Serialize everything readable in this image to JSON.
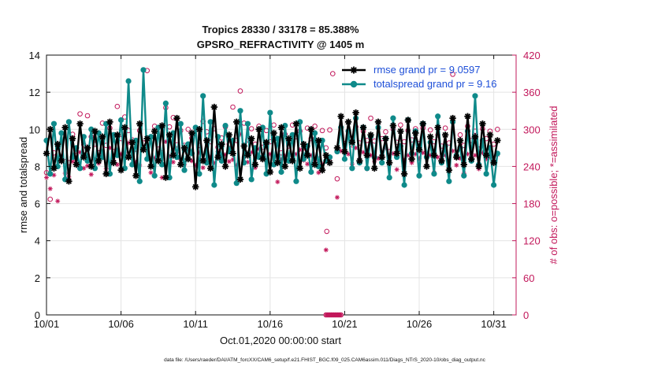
{
  "chart_data": {
    "type": "line",
    "title_line1": "Tropics 28330 / 33178 = 85.388%",
    "title_line2": "GPSRO_REFRACTIVITY @ 1405 m",
    "xlabel": "Oct.01,2020 00:00:00 start",
    "ylabel_left": "rmse and totalspread",
    "ylabel_right": "# of obs: o=possible; *=assimilated",
    "xlim": [
      0,
      31.5
    ],
    "ylim_left": [
      0,
      14
    ],
    "ylim_right": [
      0,
      420
    ],
    "x_ticks": [
      {
        "value": 0,
        "label": "10/01"
      },
      {
        "value": 5,
        "label": "10/06"
      },
      {
        "value": 10,
        "label": "10/11"
      },
      {
        "value": 15,
        "label": "10/16"
      },
      {
        "value": 20,
        "label": "10/21"
      },
      {
        "value": 25,
        "label": "10/26"
      },
      {
        "value": 30,
        "label": "10/31"
      }
    ],
    "y_ticks_left": [
      "0",
      "2",
      "4",
      "6",
      "8",
      "10",
      "12",
      "14"
    ],
    "y_ticks_right": [
      "0",
      "60",
      "120",
      "180",
      "240",
      "300",
      "360",
      "420"
    ],
    "legend_position": "top-right",
    "x_step_days": 0.25,
    "series": [
      {
        "name": "rmse grand pr = 9.0597",
        "color": "#000000",
        "marker": "star",
        "axis": "left",
        "segments": [
          {
            "x_start": 0.0,
            "values": [
              8.7,
              10.0,
              7.9,
              9.2,
              8.3,
              10.1,
              7.2,
              9.5,
              8.1,
              10.3,
              8.5,
              9.0,
              8.0,
              9.9,
              8.3,
              9.6,
              7.6,
              10.4,
              8.2,
              9.7,
              7.8,
              10.1,
              8.5,
              9.3,
              7.5,
              10.3,
              8.9,
              9.5,
              8.0,
              9.9,
              8.3,
              10.2,
              7.4,
              9.7,
              8.6,
              10.6,
              8.1,
              9.0,
              8.4,
              9.8,
              6.9,
              10.0,
              8.3,
              9.4,
              7.9,
              11.2,
              8.5,
              9.2,
              8.0,
              9.7,
              8.7,
              10.4,
              7.3,
              9.1,
              8.6,
              9.5,
              8.1,
              10.0,
              8.4,
              9.3,
              7.7,
              9.8,
              8.2,
              10.1,
              8.0,
              9.5,
              8.3,
              10.3,
              7.9,
              9.2,
              8.6,
              10.0,
              8.1,
              9.4,
              7.8,
              8.6,
              8.2
            ]
          },
          {
            "x_start": 19.5,
            "values": [
              9.0,
              10.7,
              8.8,
              10.4,
              9.3,
              10.9,
              8.3,
              10.1,
              8.6,
              9.7,
              7.9,
              10.4,
              8.5,
              9.5,
              8.2,
              10.2,
              8.7,
              9.9,
              7.6,
              10.5,
              8.4,
              9.8,
              8.9,
              10.3,
              8.0,
              9.6,
              8.6,
              10.1,
              8.3,
              9.7,
              7.8,
              10.6,
              8.5,
              9.4,
              8.1,
              10.7,
              8.4,
              9.6,
              8.0,
              10.3,
              8.6,
              9.7,
              8.2,
              9.4
            ]
          }
        ]
      },
      {
        "name": "totalspread grand pr = 9.16",
        "color": "#0f8a8a",
        "marker": "circle",
        "axis": "left",
        "segments": [
          {
            "x_start": 0.0,
            "values": [
              9.4,
              7.6,
              10.3,
              8.0,
              9.8,
              7.3,
              10.4,
              8.5,
              9.0,
              7.9,
              9.6,
              8.3,
              10.0,
              7.9,
              9.8,
              8.5,
              10.3,
              7.6,
              9.7,
              8.6,
              10.5,
              7.9,
              12.6,
              8.1,
              9.4,
              7.2,
              13.2,
              8.4,
              9.6,
              7.5,
              10.1,
              8.1,
              11.4,
              7.4,
              9.8,
              8.5,
              10.3,
              7.8,
              9.2,
              8.7,
              10.1,
              7.6,
              11.8,
              8.2,
              10.4,
              7.0,
              9.6,
              8.3,
              10.2,
              8.8,
              9.4,
              7.1,
              11.0,
              8.2,
              10.3,
              7.3,
              9.0,
              8.5,
              10.1,
              7.6,
              10.9,
              8.1,
              9.5,
              7.7,
              10.2,
              8.3,
              9.7,
              7.2,
              10.4,
              8.4,
              9.1,
              7.7,
              9.8,
              8.0,
              9.4,
              8.3,
              8.5
            ]
          },
          {
            "x_start": 19.5,
            "values": [
              8.8,
              10.1,
              8.4,
              9.9,
              7.9,
              10.6,
              8.2,
              10.1,
              7.9,
              9.6,
              8.5,
              10.1,
              8.2,
              9.5,
              7.4,
              10.6,
              8.5,
              9.1,
              7.0,
              10.5,
              8.7,
              9.9,
              7.5,
              10.3,
              8.5,
              9.3,
              7.6,
              10.7,
              8.2,
              9.1,
              7.2,
              10.4,
              8.6,
              9.0,
              7.5,
              9.9,
              8.3,
              11.8,
              8.1,
              9.4,
              7.6,
              9.0,
              7.0,
              8.7
            ]
          }
        ]
      },
      {
        "name": "# of obs possible",
        "color": "#c2185b",
        "marker": "open-circle",
        "axis": "right",
        "segments": [
          {
            "x_start": 0.0,
            "values": [
              230,
              187,
              262,
              272,
              250,
              248,
              246,
              292,
              258,
              325,
              275,
              322,
              288,
              276,
              262,
              310,
              274,
              302,
              264,
              337,
              285,
              320,
              298,
              283,
              268,
              298,
              278,
              395,
              252,
              305,
              268,
              262,
              335,
              304,
              319,
              275,
              298,
              274,
              300,
              286,
              302,
              274,
              313,
              296,
              280,
              301,
              271,
              286,
              304,
              276,
              336,
              282,
              362,
              310,
              283,
              301,
              276,
              305,
              271,
              298,
              280,
              307,
              285,
              262,
              292,
              273,
              307,
              288,
              297,
              270,
              302,
              285,
              305,
              252,
              298,
              270,
              299
            ]
          },
          {
            "x_start": 19.5,
            "values": [
              220,
              295,
              277,
              290,
              275,
              304,
              278,
              297,
              282,
              318,
              281,
              303,
              285,
              296,
              264,
              300,
              279,
              307,
              280,
              298,
              283,
              301,
              277,
              302,
              256,
              299,
              280,
              291,
              273,
              302,
              278,
              389,
              255,
              291,
              274,
              305,
              282,
              297,
              268,
              301,
              285,
              297,
              276,
              300
            ]
          }
        ]
      },
      {
        "name": "# of obs assimilated",
        "color": "#c2185b",
        "marker": "asterisk",
        "axis": "right",
        "segments": [
          {
            "x_start": 0.0,
            "values": [
              222,
              204,
              226,
              184,
              257,
              229,
              223,
              248,
              252,
              263,
              237,
              241,
              227,
              251,
              245,
              258,
              236,
              270,
              250,
              243,
              260,
              262,
              278,
              256,
              247,
              242,
              267,
              252,
              230,
              254,
              261,
              222,
              280,
              256,
              247,
              263,
              251,
              243,
              268,
              249,
              242,
              262,
              238,
              251,
              256,
              246,
              264,
              253,
              259,
              248,
              251,
              242,
              292,
              255,
              247,
              263,
              238,
              268,
              254,
              249,
              260,
              243,
              215,
              251,
              257,
              248,
              256,
              260,
              267,
              250,
              244,
              258,
              247,
              230,
              244,
              248,
              253
            ]
          },
          {
            "x_start": 19.5,
            "values": [
              190,
              265,
              253,
              260,
              244,
              270,
              252,
              263,
              236,
              258,
              248,
              253,
              259,
              270,
              250,
              261,
              235,
              266,
              250,
              258,
              246,
              260,
              253,
              262,
              240,
              258,
              230,
              255,
              250,
              258,
              237,
              265,
              242,
              253,
              229,
              260,
              249,
              258,
              236,
              262,
              252,
              255,
              248,
              259
            ]
          }
        ]
      }
    ]
  },
  "footer_text": "data file: /Users/raeder/DAI/ATM_forcXX/CAM6_setup/f.e21.FHIST_BGC.f09_025.CAM6assim.011/Diags_NTrS_2020-10/obs_diag_output.nc"
}
